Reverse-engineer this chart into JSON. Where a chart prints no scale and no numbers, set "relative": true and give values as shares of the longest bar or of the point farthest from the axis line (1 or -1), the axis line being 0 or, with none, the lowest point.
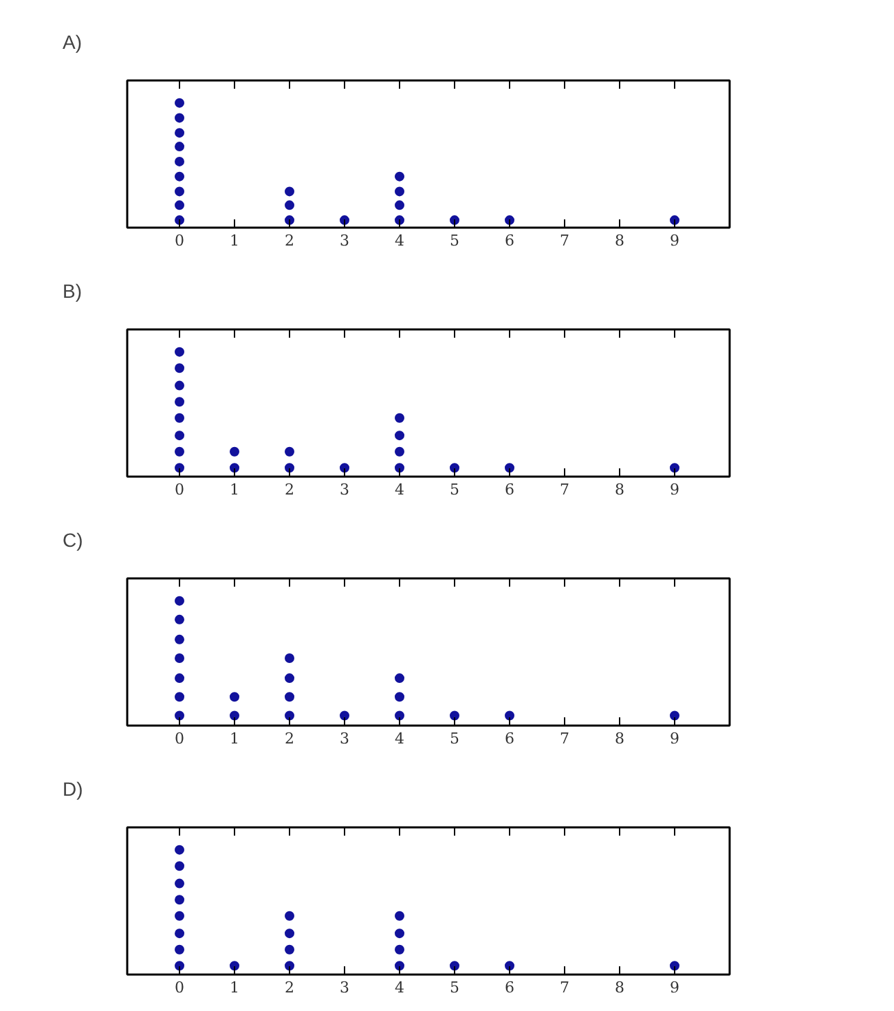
{
  "chart_data": [
    {
      "type": "scatter",
      "title": "A)",
      "relative": true,
      "x": [
        0,
        0,
        0,
        0,
        0,
        0,
        0,
        0,
        0,
        2,
        2,
        2,
        3,
        4,
        4,
        4,
        4,
        5,
        6,
        9
      ],
      "values": [
        0.06,
        0.18,
        0.29,
        0.41,
        0.53,
        0.65,
        0.76,
        0.88,
        1,
        0.06,
        0.18,
        0.29,
        0.06,
        0.06,
        0.18,
        0.29,
        0.41,
        0.06,
        0.06,
        0.06
      ],
      "color": "#12129c",
      "marker": "circle",
      "xlim": [
        -0.95,
        10
      ],
      "xticks": [
        0,
        1,
        2,
        3,
        4,
        5,
        6,
        7,
        8,
        9
      ],
      "tick_labels": "x"
    },
    {
      "type": "scatter",
      "title": "B)",
      "relative": true,
      "x": [
        0,
        0,
        0,
        0,
        0,
        0,
        0,
        0,
        1,
        1,
        2,
        2,
        3,
        4,
        4,
        4,
        4,
        5,
        6,
        9
      ],
      "values": [
        0.07,
        0.2,
        0.33,
        0.47,
        0.6,
        0.73,
        0.87,
        1,
        0.07,
        0.2,
        0.07,
        0.2,
        0.07,
        0.07,
        0.2,
        0.33,
        0.47,
        0.07,
        0.07,
        0.07
      ],
      "color": "#12129c",
      "marker": "circle",
      "xlim": [
        -0.95,
        10
      ],
      "xticks": [
        0,
        1,
        2,
        3,
        4,
        5,
        6,
        7,
        8,
        9
      ],
      "tick_labels": "x"
    },
    {
      "type": "scatter",
      "title": "C)",
      "relative": true,
      "x": [
        0,
        0,
        0,
        0,
        0,
        0,
        0,
        1,
        1,
        2,
        2,
        2,
        2,
        3,
        4,
        4,
        4,
        5,
        6,
        9
      ],
      "values": [
        0.08,
        0.23,
        0.38,
        0.54,
        0.69,
        0.85,
        1,
        0.08,
        0.23,
        0.08,
        0.23,
        0.38,
        0.54,
        0.08,
        0.08,
        0.23,
        0.38,
        0.08,
        0.08,
        0.08
      ],
      "color": "#12129c",
      "marker": "circle",
      "xlim": [
        -0.95,
        10
      ],
      "xticks": [
        0,
        1,
        2,
        3,
        4,
        5,
        6,
        7,
        8,
        9
      ],
      "tick_labels": "x"
    },
    {
      "type": "scatter",
      "title": "D)",
      "relative": true,
      "x": [
        0,
        0,
        0,
        0,
        0,
        0,
        0,
        0,
        1,
        2,
        2,
        2,
        2,
        4,
        4,
        4,
        4,
        5,
        6,
        9
      ],
      "values": [
        0.07,
        0.2,
        0.33,
        0.47,
        0.6,
        0.73,
        0.87,
        1,
        0.07,
        0.07,
        0.2,
        0.33,
        0.47,
        0.07,
        0.2,
        0.33,
        0.47,
        0.07,
        0.07,
        0.07
      ],
      "color": "#12129c",
      "marker": "circle",
      "xlim": [
        -0.95,
        10
      ],
      "xticks": [
        0,
        1,
        2,
        3,
        4,
        5,
        6,
        7,
        8,
        9
      ],
      "tick_labels": "x"
    }
  ]
}
